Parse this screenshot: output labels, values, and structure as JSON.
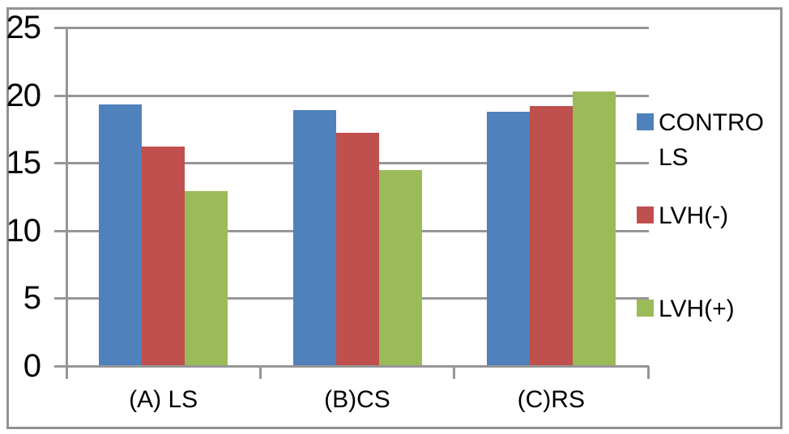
{
  "chart_data": {
    "type": "bar",
    "title": "",
    "categories": [
      "(A) LS",
      "(B)CS",
      "(C)RS"
    ],
    "series": [
      {
        "id": "controls",
        "name": "CONTROLS",
        "color": "#4F81BD",
        "values": [
          19.3,
          18.9,
          18.8
        ]
      },
      {
        "id": "lvh-neg",
        "name": "LVH(-)",
        "color": "#C0504D",
        "values": [
          16.2,
          17.2,
          19.2
        ]
      },
      {
        "id": "lvh-pos",
        "name": "LVH(+)",
        "color": "#9BBB59",
        "values": [
          12.9,
          14.5,
          20.3
        ]
      }
    ],
    "xlabel": "",
    "ylabel": "",
    "ylim": [
      0,
      25
    ],
    "y_ticks": [
      0,
      5,
      10,
      15,
      20,
      25
    ],
    "grid": true,
    "legend_position": "right",
    "colors": {
      "gridline": "#969696",
      "axis": "#969696",
      "text": "#000000",
      "background": "#FFFFFF",
      "border": "#929292"
    }
  },
  "legend": {
    "items": [
      {
        "id": "controls",
        "label": "CONTROLS",
        "line1": "CONTRO",
        "line2": "LS",
        "color": "#4F81BD"
      },
      {
        "id": "lvh-neg",
        "label": "LVH(-)",
        "line1": "LVH(-)",
        "line2": "",
        "color": "#C0504D"
      },
      {
        "id": "lvh-pos",
        "label": "LVH(+)",
        "line1": "LVH(+)",
        "line2": "",
        "color": "#9BBB59"
      }
    ]
  }
}
